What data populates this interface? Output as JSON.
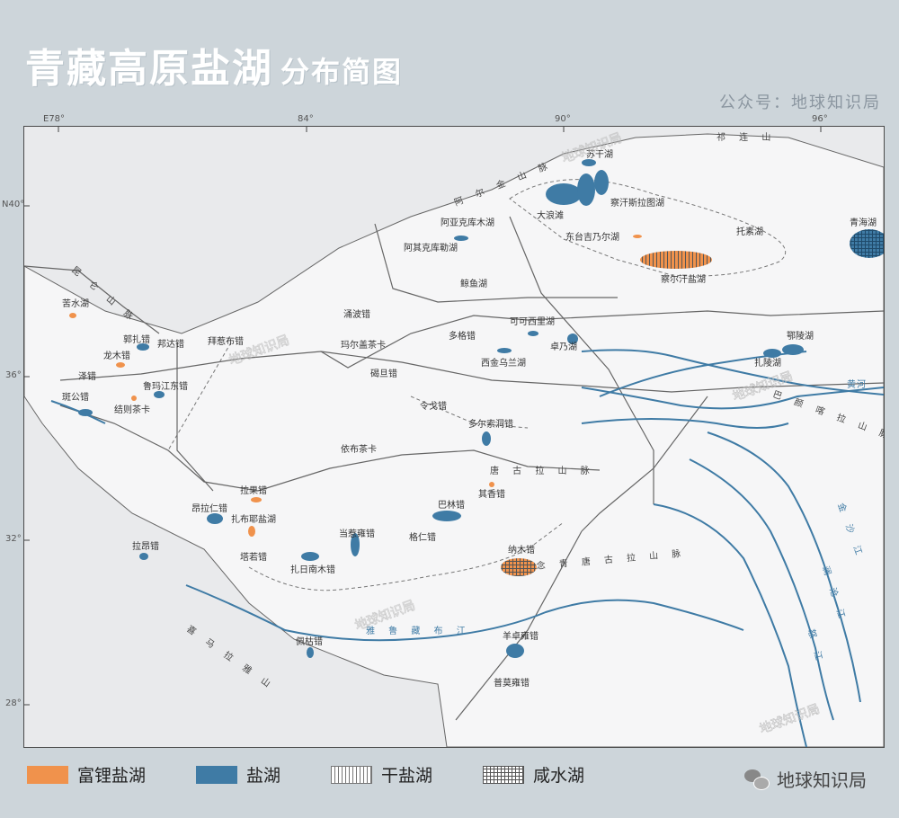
{
  "title": {
    "main": "青藏高原盐湖",
    "sub": "分布简图"
  },
  "account": "公众号：地球知识局",
  "ticks": {
    "top": [
      "E78°",
      "84°",
      "90°",
      "96°"
    ],
    "left": [
      "N40°",
      "36°",
      "32°",
      "28°"
    ]
  },
  "colors": {
    "background": "#cdd5da",
    "map_bg": "#eeeff0",
    "lithium_lake": "#f0924c",
    "salt_lake": "#3f7ba5",
    "river": "#3f7ba5",
    "boundary": "#777777"
  },
  "mountains": [
    "祁连山",
    "阿尔金山脉",
    "昆仑山脉",
    "唐古拉山脉",
    "巴颜喀拉山脉",
    "冈底斯山脉",
    "喜马拉雅山",
    "念青唐古拉山脉"
  ],
  "rivers": [
    "黄河",
    "金沙江",
    "澜沧江",
    "怒江",
    "雅鲁藏布江"
  ],
  "lakes": [
    {
      "name": "苦水湖",
      "type": "lithium"
    },
    {
      "name": "郭扎错",
      "type": "salt"
    },
    {
      "name": "邦达错",
      "type": "salt"
    },
    {
      "name": "拜惹布错",
      "type": "salt"
    },
    {
      "name": "龙木错",
      "type": "lithium"
    },
    {
      "name": "泽错",
      "type": "salt"
    },
    {
      "name": "鲁玛江东错",
      "type": "salt"
    },
    {
      "name": "斑公错",
      "type": "salt"
    },
    {
      "name": "结则茶卡",
      "type": "lithium"
    },
    {
      "name": "涌波错",
      "type": "salt"
    },
    {
      "name": "玛尔盖茶卡",
      "type": "salt"
    },
    {
      "name": "碣旦错",
      "type": "salt"
    },
    {
      "name": "多格错",
      "type": "salt"
    },
    {
      "name": "可可西里湖",
      "type": "salt"
    },
    {
      "name": "卓乃湖",
      "type": "salt"
    },
    {
      "name": "西金乌兰湖",
      "type": "salt"
    },
    {
      "name": "令戈错",
      "type": "salt"
    },
    {
      "name": "多尔索洞错",
      "type": "salt"
    },
    {
      "name": "依布茶卡",
      "type": "salt"
    },
    {
      "name": "阿亚克库木湖",
      "type": "salt"
    },
    {
      "name": "阿其克库勒湖",
      "type": "salt"
    },
    {
      "name": "鲸鱼湖",
      "type": "salt"
    },
    {
      "name": "苏干湖",
      "type": "salt"
    },
    {
      "name": "大浪滩",
      "type": "salt"
    },
    {
      "name": "察汗斯拉图湖",
      "type": "salt"
    },
    {
      "name": "东台吉乃尔湖",
      "type": "lithium"
    },
    {
      "name": "察尔汗盐湖",
      "type": "lithium"
    },
    {
      "name": "托素湖",
      "type": "salt"
    },
    {
      "name": "青海湖",
      "type": "brine"
    },
    {
      "name": "鄂陵湖",
      "type": "salt"
    },
    {
      "name": "扎陵湖",
      "type": "salt"
    },
    {
      "name": "拉果错",
      "type": "lithium"
    },
    {
      "name": "昂拉仁错",
      "type": "salt"
    },
    {
      "name": "扎布耶盐湖",
      "type": "lithium"
    },
    {
      "name": "塔若错",
      "type": "salt"
    },
    {
      "name": "当惹雍错",
      "type": "salt"
    },
    {
      "name": "扎日南木错",
      "type": "salt"
    },
    {
      "name": "巴林错",
      "type": "salt"
    },
    {
      "name": "其香错",
      "type": "lithium"
    },
    {
      "name": "格仁错",
      "type": "salt"
    },
    {
      "name": "纳木错",
      "type": "brine"
    },
    {
      "name": "拉昂错",
      "type": "salt"
    },
    {
      "name": "佩枯错",
      "type": "salt"
    },
    {
      "name": "羊卓雍错",
      "type": "salt"
    },
    {
      "name": "普莫雍错",
      "type": "salt"
    }
  ],
  "watermark": "地球知识局",
  "legend": [
    {
      "label": "富锂盐湖",
      "kind": "li"
    },
    {
      "label": "盐湖",
      "kind": "salt"
    },
    {
      "label": "干盐湖",
      "kind": "dry"
    },
    {
      "label": "咸水湖",
      "kind": "brine"
    }
  ],
  "brand": "地球知识局"
}
